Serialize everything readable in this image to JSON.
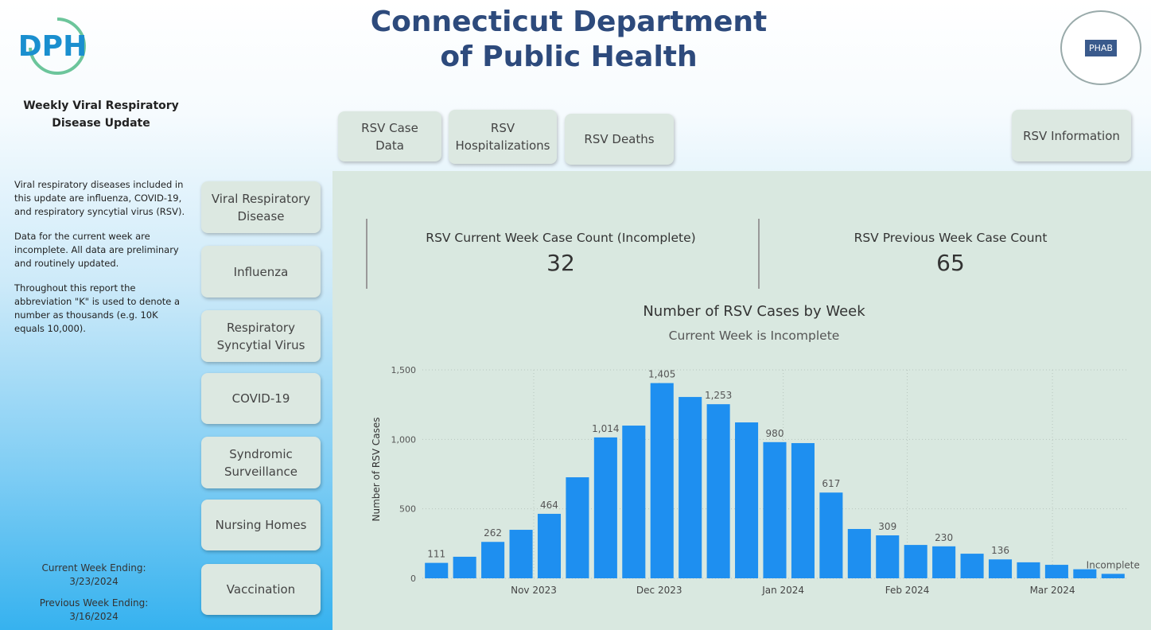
{
  "header": {
    "logo": "DPH",
    "title": [
      "Connecticut Department",
      "of Public Health"
    ],
    "badge": "PHAB"
  },
  "sidebar": {
    "title": "Weekly Viral Respiratory Disease Update",
    "paragraphs": [
      "Viral respiratory diseases included in this update are influenza, COVID-19, and respiratory syncytial virus (RSV).",
      "Data for the current week are incomplete.  All data are preliminary and routinely updated.",
      "Throughout this report the abbreviation \"K\" is used to denote a number as thousands (e.g. 10K equals 10,000)."
    ],
    "current_week_label": "Current Week Ending:",
    "current_week": "3/23/2024",
    "previous_week_label": "Previous Week Ending:",
    "previous_week": "3/16/2024"
  },
  "nav": [
    "Viral Respiratory Disease",
    "Influenza",
    "Respiratory Syncytial Virus",
    "COVID-19",
    "Syndromic Surveillance",
    "Nursing Homes",
    "Vaccination"
  ],
  "tabs": [
    "RSV Case Data",
    "RSV Hospitalizations",
    "RSV Deaths",
    "RSV Information"
  ],
  "kpis": [
    {
      "label": "RSV Current Week Case Count (Incomplete)",
      "value": 32
    },
    {
      "label": "RSV Previous Week Case Count",
      "value": 65
    }
  ],
  "chart_data": {
    "type": "bar",
    "title": "Number of RSV Cases by Week",
    "subtitle": "Current Week is Incomplete",
    "y_label": "Number of RSV Cases",
    "color": "#1e8ff0",
    "grid": true,
    "categories": [
      null,
      null,
      null,
      null,
      null,
      null,
      null,
      null,
      null,
      null,
      null,
      null,
      null,
      null,
      null,
      null,
      null,
      null,
      null,
      null,
      null,
      null,
      null,
      null,
      null
    ],
    "values": [
      111,
      155,
      262,
      349,
      464,
      727,
      1014,
      1099,
      1405,
      1305,
      1253,
      1122,
      980,
      973,
      617,
      355,
      309,
      240,
      230,
      177,
      136,
      115,
      97,
      65,
      32
    ],
    "value_labels": [
      "111",
      null,
      "262",
      null,
      "464",
      null,
      "1,014",
      null,
      "1,405",
      null,
      "1,253",
      null,
      "980",
      null,
      "617",
      null,
      "309",
      null,
      "230",
      null,
      "136",
      null,
      null,
      null,
      "Incomplete"
    ],
    "ylim": [
      0,
      1500
    ],
    "yticks": [
      0,
      500,
      {
        "value": 1000,
        "label": "1,000"
      },
      {
        "value": 1500,
        "label": "1,500"
      }
    ],
    "xlim": [
      -0.5,
      24.5
    ],
    "xticks": [
      {
        "value": 3.45,
        "label": "Nov 2023"
      },
      {
        "value": 7.9,
        "label": "Dec 2023"
      },
      {
        "value": 12.3,
        "label": "Jan 2024"
      },
      {
        "value": 16.7,
        "label": "Feb 2024"
      },
      {
        "value": 21.85,
        "label": "Mar 2024"
      }
    ]
  }
}
